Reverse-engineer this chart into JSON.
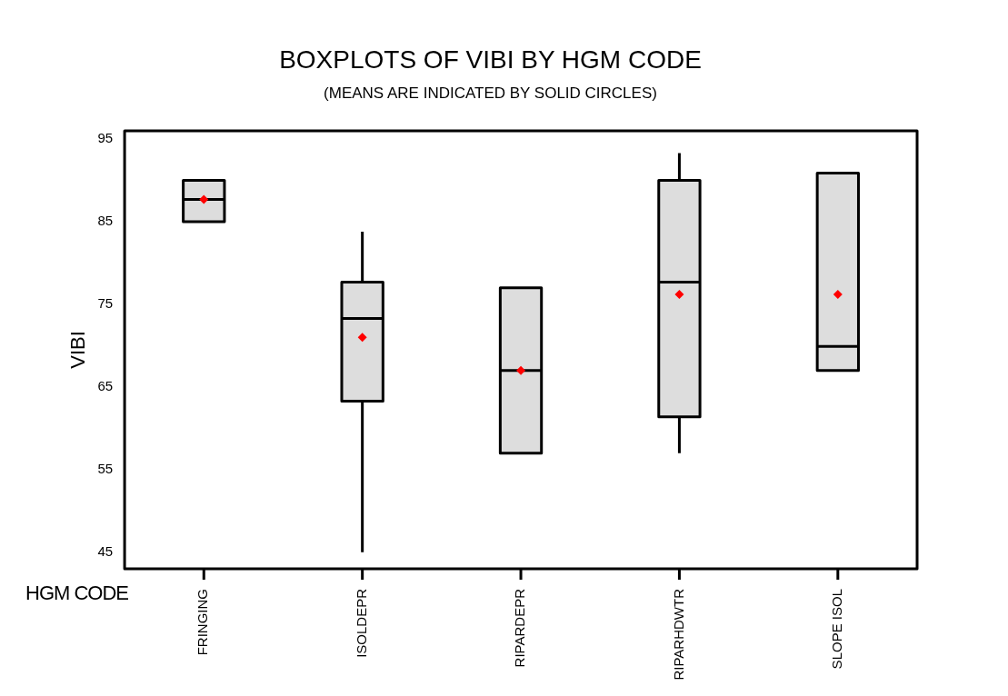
{
  "chart_data": {
    "type": "box",
    "title": "BOXPLOTS OF VIBI BY HGM CODE",
    "subtitle": "(MEANS ARE INDICATED BY SOLID CIRCLES)",
    "xlabel": "HGM CODE",
    "ylabel": "VIBI",
    "categories": [
      "FRINGING",
      "ISOLDEPR",
      "RIPARDEPR",
      "RIPARHDWTR",
      "SLOPE ISOL"
    ],
    "boxes": [
      {
        "low": 85,
        "q1": 85,
        "median": 87.7,
        "q3": 90,
        "high": 90,
        "mean": 87.7
      },
      {
        "low": 45,
        "q1": 63.3,
        "median": 73.3,
        "q3": 77.7,
        "high": 83.8,
        "mean": 71
      },
      {
        "low": 57,
        "q1": 57,
        "median": 67,
        "q3": 77,
        "high": 77,
        "mean": 67
      },
      {
        "low": 57,
        "q1": 61.4,
        "median": 77.7,
        "q3": 90,
        "high": 93.3,
        "mean": 76.2
      },
      {
        "low": 67,
        "q1": 67,
        "median": 69.9,
        "q3": 90.9,
        "high": 90.9,
        "mean": 76.2
      }
    ],
    "color": "#dddddd",
    "marker": "diamond",
    "ylim": [
      43,
      96
    ],
    "yticks": [
      45,
      55,
      65,
      75,
      85,
      95
    ],
    "grid": false,
    "legend": false
  }
}
